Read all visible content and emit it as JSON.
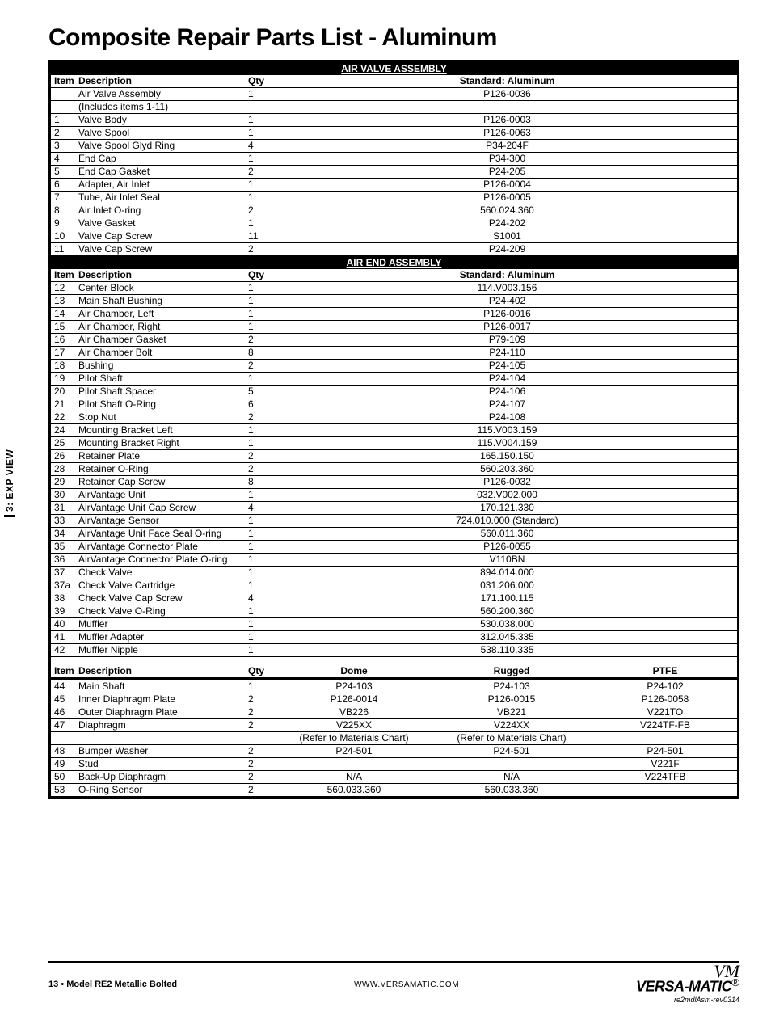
{
  "side_tab": "3: EXP VIEW",
  "page_title": "Composite Repair Parts List - Aluminum",
  "sections": {
    "s1": {
      "header": "AIR VALVE ASSEMBLY",
      "col_item": "Item",
      "col_desc": "Description",
      "col_qty": "Qty",
      "col_part": "Standard: Aluminum",
      "rows": [
        {
          "item": "",
          "desc": "Air Valve Assembly",
          "qty": "1",
          "part": "P126-0036"
        },
        {
          "item": "",
          "desc": "(Includes items 1-11)",
          "qty": "",
          "part": ""
        },
        {
          "item": "1",
          "desc": "Valve Body",
          "qty": "1",
          "part": "P126-0003"
        },
        {
          "item": "2",
          "desc": "Valve Spool",
          "qty": "1",
          "part": "P126-0063"
        },
        {
          "item": "3",
          "desc": "Valve Spool Glyd Ring",
          "qty": "4",
          "part": "P34-204F"
        },
        {
          "item": "4",
          "desc": "End Cap",
          "qty": "1",
          "part": "P34-300"
        },
        {
          "item": "5",
          "desc": "End Cap Gasket",
          "qty": "2",
          "part": "P24-205"
        },
        {
          "item": "6",
          "desc": "Adapter, Air Inlet",
          "qty": "1",
          "part": "P126-0004"
        },
        {
          "item": "7",
          "desc": "Tube, Air Inlet Seal",
          "qty": "1",
          "part": "P126-0005"
        },
        {
          "item": "8",
          "desc": "Air Inlet O-ring",
          "qty": "2",
          "part": "560.024.360"
        },
        {
          "item": "9",
          "desc": "Valve Gasket",
          "qty": "1",
          "part": "P24-202"
        },
        {
          "item": "10",
          "desc": "Valve Cap Screw",
          "qty": "11",
          "part": "S1001"
        },
        {
          "item": "11",
          "desc": "Valve Cap Screw",
          "qty": "2",
          "part": "P24-209"
        }
      ]
    },
    "s2": {
      "header": "AIR END ASSEMBLY",
      "col_item": "Item",
      "col_desc": "Description",
      "col_qty": "Qty",
      "col_part": "Standard: Aluminum",
      "rows": [
        {
          "item": "12",
          "desc": "Center Block",
          "qty": "1",
          "part": "114.V003.156"
        },
        {
          "item": "13",
          "desc": "Main Shaft Bushing",
          "qty": "1",
          "part": "P24-402"
        },
        {
          "item": "14",
          "desc": "Air Chamber, Left",
          "qty": "1",
          "part": "P126-0016"
        },
        {
          "item": "15",
          "desc": "Air Chamber, Right",
          "qty": "1",
          "part": "P126-0017"
        },
        {
          "item": "16",
          "desc": "Air Chamber Gasket",
          "qty": "2",
          "part": "P79-109"
        },
        {
          "item": "17",
          "desc": "Air Chamber Bolt",
          "qty": "8",
          "part": "P24-110"
        },
        {
          "item": "18",
          "desc": "Bushing",
          "qty": "2",
          "part": "P24-105"
        },
        {
          "item": "19",
          "desc": "Pilot Shaft",
          "qty": "1",
          "part": "P24-104"
        },
        {
          "item": "20",
          "desc": "Pilot Shaft Spacer",
          "qty": "5",
          "part": "P24-106"
        },
        {
          "item": "21",
          "desc": "Pilot Shaft O-Ring",
          "qty": "6",
          "part": "P24-107"
        },
        {
          "item": "22",
          "desc": "Stop Nut",
          "qty": "2",
          "part": "P24-108"
        },
        {
          "item": "24",
          "desc": "Mounting Bracket Left",
          "qty": "1",
          "part": "115.V003.159"
        },
        {
          "item": "25",
          "desc": "Mounting Bracket Right",
          "qty": "1",
          "part": "115.V004.159"
        },
        {
          "item": "26",
          "desc": "Retainer Plate",
          "qty": "2",
          "part": "165.150.150"
        },
        {
          "item": "28",
          "desc": "Retainer O-Ring",
          "qty": "2",
          "part": "560.203.360"
        },
        {
          "item": "29",
          "desc": "Retainer Cap Screw",
          "qty": "8",
          "part": "P126-0032"
        },
        {
          "item": "30",
          "desc": "AirVantage Unit",
          "qty": "1",
          "part": "032.V002.000"
        },
        {
          "item": "31",
          "desc": "AirVantage Unit Cap Screw",
          "qty": "4",
          "part": "170.121.330"
        },
        {
          "item": "33",
          "desc": "AirVantage Sensor",
          "qty": "1",
          "part": "724.010.000 (Standard)"
        },
        {
          "item": "34",
          "desc": "AirVantage Unit Face Seal O-ring",
          "qty": "1",
          "part": "560.011.360"
        },
        {
          "item": "35",
          "desc": "AirVantage Connector Plate",
          "qty": "1",
          "part": "P126-0055"
        },
        {
          "item": "36",
          "desc": "AirVantage Connector Plate O-ring",
          "qty": "1",
          "part": "V110BN"
        },
        {
          "item": "37",
          "desc": "Check Valve",
          "qty": "1",
          "part": "894.014.000"
        },
        {
          "item": "37a",
          "desc": "Check Valve Cartridge",
          "qty": "1",
          "part": "031.206.000"
        },
        {
          "item": "38",
          "desc": "Check Valve Cap Screw",
          "qty": "4",
          "part": "171.100.115"
        },
        {
          "item": "39",
          "desc": "Check Valve O-Ring",
          "qty": "1",
          "part": "560.200.360"
        },
        {
          "item": "40",
          "desc": "Muffler",
          "qty": "1",
          "part": "530.038.000"
        },
        {
          "item": "41",
          "desc": "Muffler Adapter",
          "qty": "1",
          "part": "312.045.335"
        },
        {
          "item": "42",
          "desc": "Muffler Nipple",
          "qty": "1",
          "part": "538.110.335"
        }
      ]
    },
    "s3": {
      "col_item": "Item",
      "col_desc": "Description",
      "col_qty": "Qty",
      "col_a": "Dome",
      "col_b": "Rugged",
      "col_c": "PTFE",
      "rows": [
        {
          "item": "44",
          "desc": "Main Shaft",
          "qty": "1",
          "a": "P24-103",
          "b": "P24-103",
          "c": "P24-102"
        },
        {
          "item": "45",
          "desc": "Inner Diaphragm Plate",
          "qty": "2",
          "a": "P126-0014",
          "b": "P126-0015",
          "c": "P126-0058"
        },
        {
          "item": "46",
          "desc": "Outer Diaphragm Plate",
          "qty": "2",
          "a": "VB226",
          "b": "VB221",
          "c": "V221TO"
        },
        {
          "item": "47",
          "desc": "Diaphragm",
          "qty": "2",
          "a": "V225XX",
          "b": "V224XX",
          "c": "V224TF-FB"
        },
        {
          "item": "",
          "desc": "",
          "qty": "",
          "a": "(Refer to Materials Chart)",
          "b": "(Refer to Materials Chart)",
          "c": ""
        },
        {
          "item": "48",
          "desc": "Bumper Washer",
          "qty": "2",
          "a": "P24-501",
          "b": "P24-501",
          "c": "P24-501"
        },
        {
          "item": "49",
          "desc": "Stud",
          "qty": "2",
          "a": "",
          "b": "",
          "c": "V221F"
        },
        {
          "item": "50",
          "desc": "Back-Up Diaphragm",
          "qty": "2",
          "a": "N/A",
          "b": "N/A",
          "c": "V224TFB"
        },
        {
          "item": "53",
          "desc": "O-Ring Sensor",
          "qty": "2",
          "a": "560.033.360",
          "b": "560.033.360",
          "c": ""
        }
      ]
    }
  },
  "footer": {
    "page_no": "13",
    "model": "Model RE2 Metallic Bolted",
    "url": "WWW.VERSAMATIC.COM",
    "brand_script": "VM",
    "brand_block": "VERSA-MATIC",
    "brand_reg": "®",
    "rev": "re2mdlAsm-rev0314"
  }
}
